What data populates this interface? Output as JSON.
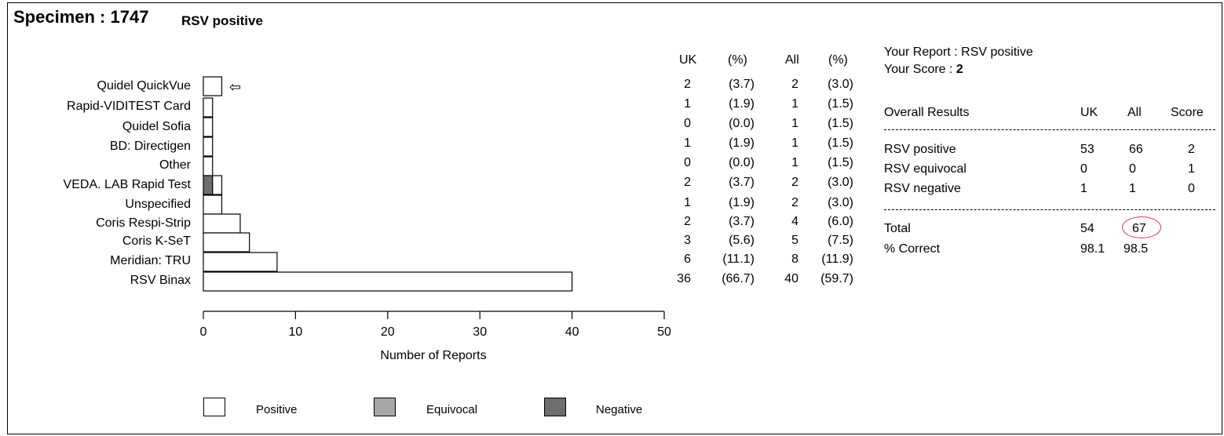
{
  "header": {
    "specimen": "Specimen : 1747",
    "result": "RSV positive"
  },
  "chart_data": {
    "type": "bar",
    "orientation": "horizontal",
    "stacked": true,
    "categories": [
      "Quidel QuickVue",
      "Rapid-VIDITEST Card",
      "Quidel Sofia",
      "BD: Directigen",
      "Other",
      "VEDA. LAB Rapid Test",
      "Unspecified",
      "Coris Respi-Strip",
      "Coris K-SeT",
      "Meridian: TRU",
      "RSV Binax"
    ],
    "series": [
      {
        "name": "Negative",
        "values": [
          0,
          0,
          0,
          0,
          0,
          1,
          0,
          0,
          0,
          0,
          0
        ]
      },
      {
        "name": "Positive",
        "values": [
          2,
          1,
          1,
          1,
          1,
          1,
          2,
          4,
          5,
          8,
          40
        ]
      },
      {
        "name": "Equivocal",
        "values": [
          0,
          0,
          0,
          0,
          0,
          0,
          0,
          0,
          0,
          0,
          0
        ]
      }
    ],
    "xlabel": "Number of Reports",
    "xlim": [
      0,
      50
    ],
    "xticks": [
      "0",
      "10",
      "20",
      "30",
      "40",
      "50"
    ],
    "highlight": "Quidel QuickVue",
    "highlight_marker": "⇦",
    "legend": [
      "Positive",
      "Equivocal",
      "Negative"
    ],
    "colors": {
      "Positive": "#ffffff",
      "Equivocal": "#a6a6a6",
      "Negative": "#6e6e6e"
    }
  },
  "table": {
    "headers": [
      "UK",
      "(%)",
      "All",
      "(%)"
    ],
    "rows": [
      [
        "2",
        "(3.7)",
        "2",
        "(3.0)"
      ],
      [
        "1",
        "(1.9)",
        "1",
        "(1.5)"
      ],
      [
        "0",
        "(0.0)",
        "1",
        "(1.5)"
      ],
      [
        "1",
        "(1.9)",
        "1",
        "(1.5)"
      ],
      [
        "0",
        "(0.0)",
        "1",
        "(1.5)"
      ],
      [
        "2",
        "(3.7)",
        "2",
        "(3.0)"
      ],
      [
        "1",
        "(1.9)",
        "2",
        "(3.0)"
      ],
      [
        "2",
        "(3.7)",
        "4",
        "(6.0)"
      ],
      [
        "3",
        "(5.6)",
        "5",
        "(7.5)"
      ],
      [
        "6",
        "(11.1)",
        "8",
        "(11.9)"
      ],
      [
        "36",
        "(66.7)",
        "40",
        "(59.7)"
      ]
    ]
  },
  "report": {
    "your_report": "Your Report : RSV positive",
    "score_label": "Your Score : ",
    "score_value": "2",
    "overall_label": "Overall Results",
    "col_headers": [
      "UK",
      "All",
      "Score"
    ],
    "rows": [
      [
        "RSV positive",
        "53",
        "66",
        "2"
      ],
      [
        "RSV equivocal",
        "0",
        "0",
        "1"
      ],
      [
        "RSV negative",
        "1",
        "1",
        "0"
      ]
    ],
    "total": [
      "Total",
      "54",
      "67"
    ],
    "correct": [
      "% Correct",
      "98.1",
      "98.5"
    ],
    "circle_color": "#d6336c"
  }
}
